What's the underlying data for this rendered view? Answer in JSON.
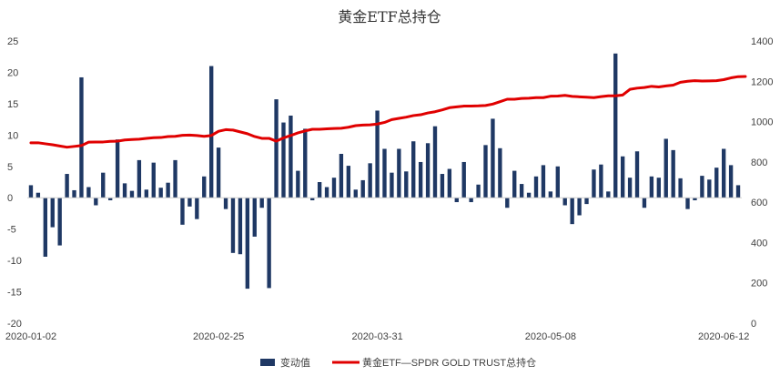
{
  "chart_data": {
    "type": "bar+line",
    "title": "黄金ETF总持仓",
    "x_tick_labels": [
      "2020-01-02",
      "2020-02-25",
      "2020-03-31",
      "2020-05-08",
      "2020-06-12"
    ],
    "x_tick_index": [
      0,
      26,
      48,
      72,
      96
    ],
    "y_left_ticks": [
      "25",
      "20",
      "15",
      "10",
      "5",
      "0",
      "-5",
      "-10",
      "-15",
      "-20"
    ],
    "y_left_range": [
      -20,
      25
    ],
    "y_right_ticks": [
      "1400",
      "1200",
      "1000",
      "800",
      "600",
      "400",
      "200",
      "0"
    ],
    "y_right_range": [
      0,
      1400
    ],
    "series": [
      {
        "name": "变动值",
        "type": "bar",
        "color": "#1F3864",
        "axis": "left",
        "values": [
          2.0,
          0.8,
          -9.4,
          -4.7,
          -7.6,
          3.8,
          1.2,
          19.2,
          1.7,
          -1.2,
          4.0,
          -0.4,
          9.3,
          2.3,
          1.1,
          6.0,
          1.3,
          5.6,
          1.6,
          2.4,
          6.0,
          -4.3,
          -1.4,
          -3.4,
          3.4,
          21.0,
          8.0,
          -1.8,
          -8.8,
          -9.0,
          -14.5,
          -6.2,
          -1.6,
          -14.4,
          15.7,
          12.0,
          13.1,
          4.3,
          11.0,
          -0.4,
          2.5,
          1.7,
          3.2,
          7.0,
          5.1,
          1.3,
          2.8,
          5.5,
          13.9,
          7.8,
          4.0,
          7.8,
          4.2,
          9.0,
          5.7,
          8.7,
          11.4,
          3.8,
          4.6,
          -0.7,
          5.7,
          -0.7,
          2.1,
          8.4,
          12.6,
          7.9,
          -1.6,
          4.3,
          2.2,
          0.8,
          3.4,
          5.2,
          1.0,
          5.0,
          -1.2,
          -4.2,
          -2.8,
          -1.0,
          4.5,
          5.3,
          1.0,
          23.0,
          6.6,
          3.2,
          7.4,
          -1.6,
          3.4,
          3.2,
          9.4,
          7.6,
          3.1,
          -1.8,
          -0.4,
          3.5,
          2.9,
          4.8,
          7.8,
          5.2,
          2.0
        ]
      },
      {
        "name": "黄金ETF—SPDR GOLD TRUST总持仓",
        "type": "line",
        "color": "#E00000",
        "axis": "right",
        "values": [
          895,
          895,
          890,
          885,
          879,
          873,
          877,
          881,
          898,
          899,
          899,
          902,
          903,
          909,
          911,
          913,
          917,
          920,
          921,
          926,
          927,
          932,
          933,
          931,
          927,
          931,
          952,
          960,
          958,
          949,
          940,
          926,
          917,
          917,
          903,
          919,
          931,
          944,
          954,
          962,
          962,
          964,
          966,
          967,
          972,
          980,
          983,
          984,
          988,
          996,
          1010,
          1016,
          1022,
          1030,
          1034,
          1043,
          1049,
          1058,
          1069,
          1073,
          1077,
          1077,
          1078,
          1080,
          1087,
          1099,
          1111,
          1111,
          1115,
          1116,
          1119,
          1119,
          1126,
          1127,
          1130,
          1125,
          1123,
          1121,
          1119,
          1124,
          1128,
          1128,
          1132,
          1160,
          1166,
          1169,
          1175,
          1172,
          1177,
          1181,
          1195,
          1200,
          1203,
          1201,
          1202,
          1203,
          1208,
          1217,
          1223,
          1224
        ]
      }
    ],
    "legend_position": "bottom",
    "grid": false
  }
}
